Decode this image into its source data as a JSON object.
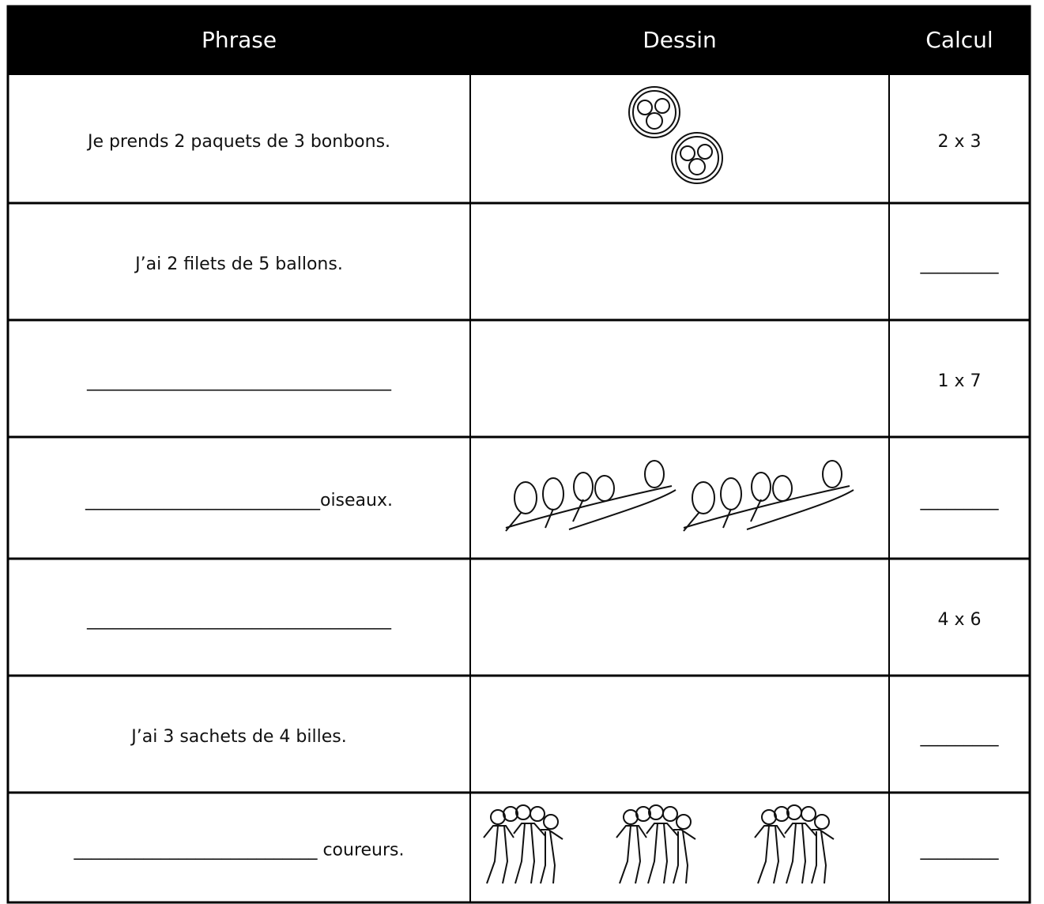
{
  "table": {
    "header": [
      "Phrase",
      "Dessin",
      "Calcul"
    ],
    "rows": [
      [
        "Je prends 2 paquets de 3 bonbons.",
        "2 x 3"
      ],
      [
        "J’ai 2 filets de 5 ballons.",
        "_________"
      ],
      [
        "___________________________________",
        "1 x 7"
      ],
      [
        "___________________________oiseaux.",
        "_________"
      ],
      [
        "___________________________________",
        "4 x 6"
      ],
      [
        "J’ai 3 sachets de 4 billes.",
        "_________"
      ],
      [
        "____________________________ coureurs.",
        "_________"
      ]
    ]
  }
}
